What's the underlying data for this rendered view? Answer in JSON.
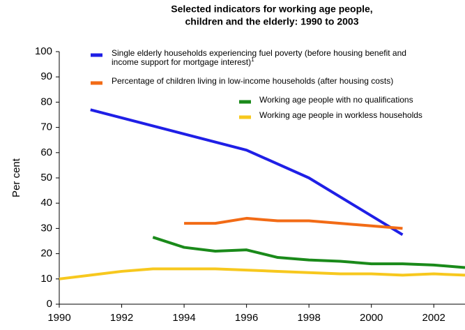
{
  "chart_data": {
    "type": "line",
    "title": [
      "Selected indicators for working age people,",
      "children and the elderly: 1990 to 2003"
    ],
    "y_label": "Per cent",
    "xlim": [
      1990,
      2003
    ],
    "xticks": [
      1990,
      1992,
      1994,
      1996,
      1998,
      2000,
      2002
    ],
    "ylim": [
      0,
      100
    ],
    "yticks": [
      0,
      10,
      20,
      30,
      40,
      50,
      60,
      70,
      80,
      90,
      100
    ],
    "legend_footnote": "1",
    "series": [
      {
        "name": "Single elderly households experiencing fuel poverty (before housing benefit and income support for mortgage interest)",
        "color": "#1f1fe6",
        "x": [
          1991,
          1996,
          1998,
          2001
        ],
        "values": [
          77,
          61,
          50,
          27.5
        ]
      },
      {
        "name": "Percentage of children living in low-income households (after housing costs)",
        "color": "#f26b16",
        "x": [
          1994,
          1995,
          1996,
          1997,
          1998,
          1999,
          2000,
          2001
        ],
        "values": [
          32,
          32,
          34,
          33,
          33,
          32,
          31,
          30
        ]
      },
      {
        "name": "Working age people with no qualifications",
        "color": "#1a8a1a",
        "x": [
          1993,
          1994,
          1995,
          1996,
          1997,
          1998,
          1999,
          2000,
          2001,
          2002,
          2003
        ],
        "values": [
          26.5,
          22.5,
          21,
          21.5,
          18.5,
          17.5,
          17,
          16,
          16,
          15.5,
          14.5
        ]
      },
      {
        "name": "Working age people in workless households",
        "color": "#f7c81e",
        "x": [
          1990,
          1991,
          1992,
          1993,
          1994,
          1995,
          1996,
          1997,
          1998,
          1999,
          2000,
          2001,
          2002,
          2003
        ],
        "values": [
          10,
          11.5,
          13,
          14,
          14,
          14,
          13.5,
          13,
          12.5,
          12,
          12,
          11.5,
          12,
          11.5
        ]
      }
    ]
  }
}
